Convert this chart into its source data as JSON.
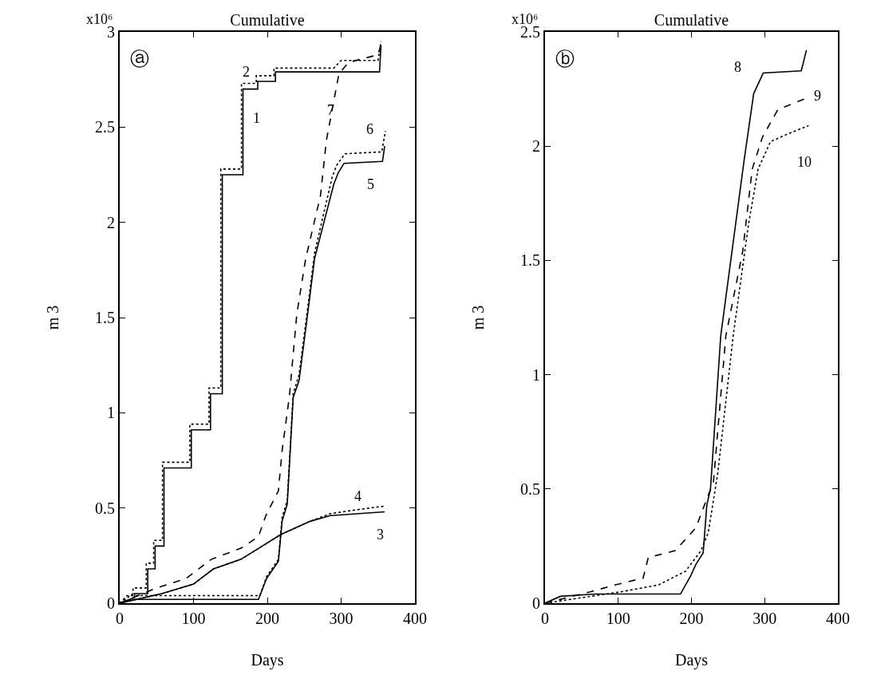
{
  "chart_data": [
    {
      "type": "line",
      "title": "Cumulative",
      "xlabel": "Days",
      "ylabel": "m 3",
      "xlim": [
        0,
        400
      ],
      "xticks": [
        0,
        100,
        200,
        300,
        400
      ],
      "ylim": [
        0,
        3
      ],
      "yticks": [
        0,
        0.5,
        1,
        1.5,
        2,
        2.5,
        3
      ],
      "grid": false,
      "legend": false,
      "marker": "none",
      "series": [
        {
          "name": "1",
          "color": "#000000",
          "line_style": "solid",
          "x": [
            0,
            20,
            20,
            38,
            38,
            48,
            48,
            60,
            60,
            97,
            97,
            123,
            123,
            139,
            139,
            167,
            167,
            187,
            187,
            211,
            211,
            352,
            354
          ],
          "values": [
            0,
            0.03,
            0.05,
            0.05,
            0.18,
            0.18,
            0.3,
            0.3,
            0.71,
            0.71,
            0.91,
            0.91,
            1.1,
            1.1,
            2.25,
            2.25,
            2.7,
            2.7,
            2.74,
            2.74,
            2.79,
            2.79,
            2.93
          ]
        },
        {
          "name": "2",
          "color": "#000000",
          "line_style": "dotted",
          "x": [
            0,
            18,
            18,
            36,
            36,
            46,
            46,
            58,
            58,
            95,
            95,
            121,
            121,
            137,
            137,
            165,
            165,
            185,
            185,
            209,
            209,
            290,
            300,
            350,
            354
          ],
          "values": [
            0,
            0.05,
            0.08,
            0.08,
            0.21,
            0.21,
            0.33,
            0.33,
            0.74,
            0.74,
            0.94,
            0.94,
            1.13,
            1.13,
            2.28,
            2.28,
            2.73,
            2.73,
            2.77,
            2.77,
            2.81,
            2.81,
            2.85,
            2.85,
            2.95
          ]
        },
        {
          "name": "3",
          "color": "#000000",
          "line_style": "solid",
          "x": [
            0,
            57,
            100,
            127,
            164,
            185,
            218,
            258,
            285,
            359
          ],
          "values": [
            0,
            0.05,
            0.1,
            0.18,
            0.23,
            0.28,
            0.36,
            0.43,
            0.46,
            0.48
          ]
        },
        {
          "name": "4",
          "color": "#000000",
          "line_style": "dotted",
          "x": [
            0,
            57,
            100,
            127,
            164,
            185,
            218,
            258,
            285,
            320,
            359
          ],
          "values": [
            0,
            0.05,
            0.1,
            0.18,
            0.23,
            0.28,
            0.36,
            0.43,
            0.47,
            0.49,
            0.51
          ]
        },
        {
          "name": "5",
          "color": "#000000",
          "line_style": "solid",
          "x": [
            0,
            20,
            188,
            199,
            215,
            220,
            227,
            235,
            243,
            254,
            264,
            290,
            296,
            304,
            356,
            359
          ],
          "values": [
            0,
            0.02,
            0.02,
            0.13,
            0.22,
            0.43,
            0.52,
            1.08,
            1.17,
            1.5,
            1.81,
            2.2,
            2.26,
            2.31,
            2.32,
            2.4
          ]
        },
        {
          "name": "6",
          "color": "#000000",
          "line_style": "dotted",
          "x": [
            0,
            10,
            190,
            199,
            215,
            220,
            227,
            235,
            243,
            254,
            264,
            288,
            294,
            305,
            355,
            360
          ],
          "values": [
            0,
            0.04,
            0.04,
            0.14,
            0.23,
            0.45,
            0.54,
            1.1,
            1.2,
            1.53,
            1.84,
            2.24,
            2.3,
            2.36,
            2.37,
            2.48
          ]
        },
        {
          "name": "7",
          "color": "#000000",
          "line_style": "dashed",
          "x": [
            0,
            50,
            90,
            124,
            165,
            188,
            198,
            215,
            220,
            230,
            240,
            252,
            272,
            280,
            297,
            310,
            350,
            355
          ],
          "values": [
            0,
            0.08,
            0.13,
            0.23,
            0.29,
            0.35,
            0.46,
            0.59,
            0.8,
            1.09,
            1.52,
            1.81,
            2.14,
            2.43,
            2.78,
            2.84,
            2.88,
            2.95
          ]
        }
      ],
      "annotations": [
        "x10⁶",
        "ⓐ"
      ]
    },
    {
      "type": "line",
      "title": "Cumulative",
      "xlabel": "Days",
      "ylabel": "m 3",
      "xlim": [
        0,
        400
      ],
      "xticks": [
        0,
        100,
        200,
        300,
        400
      ],
      "ylim": [
        0,
        2.5
      ],
      "yticks": [
        0,
        0.5,
        1,
        1.5,
        2,
        2.5
      ],
      "grid": false,
      "legend": false,
      "marker": "none",
      "series": [
        {
          "name": "8",
          "color": "#000000",
          "line_style": "solid",
          "x": [
            0,
            21,
            69,
            185,
            199,
            206,
            216,
            221,
            226,
            240,
            272,
            285,
            298,
            350,
            357
          ],
          "values": [
            0,
            0.03,
            0.04,
            0.04,
            0.12,
            0.17,
            0.22,
            0.43,
            0.5,
            1.17,
            1.94,
            2.23,
            2.32,
            2.33,
            2.42
          ]
        },
        {
          "name": "9",
          "color": "#000000",
          "line_style": "dashed",
          "x": [
            0,
            62,
            96,
            134,
            141,
            178,
            206,
            219,
            230,
            247,
            270,
            283,
            297,
            318,
            357
          ],
          "values": [
            0,
            0.05,
            0.08,
            0.11,
            0.2,
            0.23,
            0.33,
            0.44,
            0.53,
            1.17,
            1.54,
            1.9,
            2.04,
            2.16,
            2.21
          ]
        },
        {
          "name": "10",
          "color": "#000000",
          "line_style": "dotted",
          "x": [
            0,
            104,
            155,
            192,
            213,
            223,
            236,
            257,
            278,
            291,
            308,
            329,
            360
          ],
          "values": [
            0,
            0.05,
            0.08,
            0.14,
            0.23,
            0.31,
            0.57,
            1.17,
            1.66,
            1.9,
            2.02,
            2.05,
            2.09
          ]
        }
      ],
      "annotations": [
        "x10⁶",
        "ⓑ"
      ]
    }
  ]
}
